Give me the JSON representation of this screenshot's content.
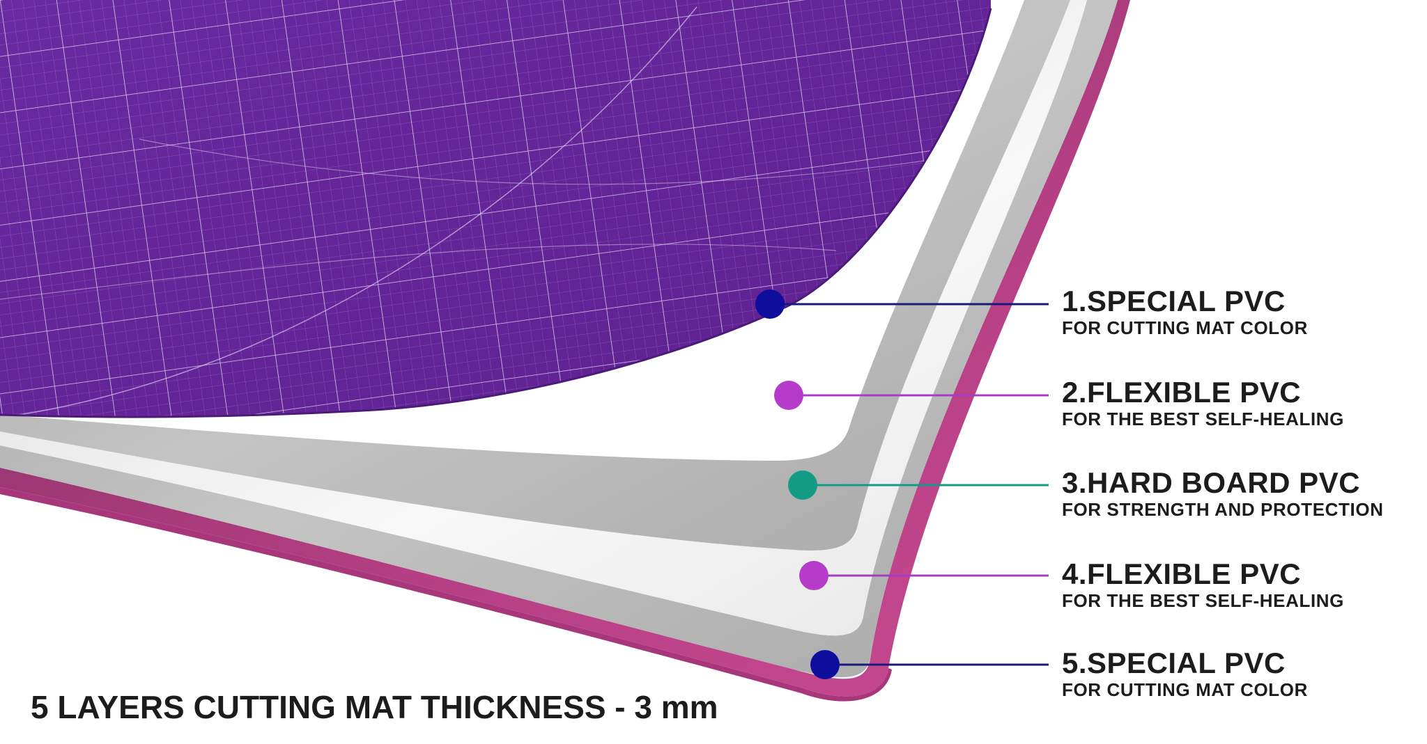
{
  "headline": "5 LAYERS CUTTING MAT THICKNESS - 3 mm",
  "colors": {
    "top_layer": "#6a2a9e",
    "flexible_layer": "#b8b8b8",
    "hard_board_layer": "#f4f4f4",
    "bottom_layer": "#c2448a",
    "marker_blue": "#0d0d9e",
    "marker_magenta": "#b43cc8",
    "marker_teal": "#139b86"
  },
  "layers": [
    {
      "title": "1.SPECIAL PVC",
      "subtitle": "FOR CUTTING MAT COLOR",
      "marker_color": "#0d0d9e",
      "line_color": "#1a1a7a",
      "marker_icon": "dot-icon"
    },
    {
      "title": "2.FLEXIBLE PVC",
      "subtitle": "FOR THE BEST SELF-HEALING",
      "marker_color": "#b43cc8",
      "line_color": "#a83cc0",
      "marker_icon": "dot-icon"
    },
    {
      "title": "3.HARD BOARD PVC",
      "subtitle": "FOR STRENGTH AND PROTECTION",
      "marker_color": "#139b86",
      "line_color": "#139b86",
      "marker_icon": "dot-icon"
    },
    {
      "title": "4.FLEXIBLE PVC",
      "subtitle": "FOR THE BEST SELF-HEALING",
      "marker_color": "#b43cc8",
      "line_color": "#a83cc0",
      "marker_icon": "dot-icon"
    },
    {
      "title": "5.SPECIAL PVC",
      "subtitle": "FOR CUTTING MAT COLOR",
      "marker_color": "#0d0d9e",
      "line_color": "#1a1a7a",
      "marker_icon": "dot-icon"
    }
  ]
}
